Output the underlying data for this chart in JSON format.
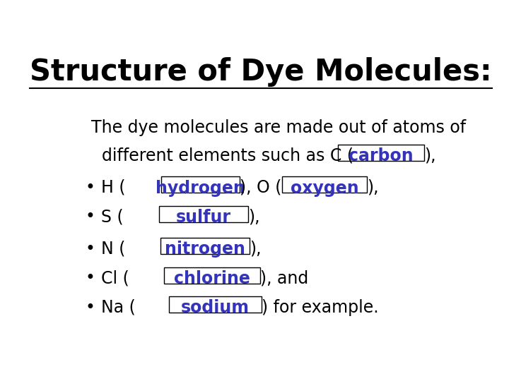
{
  "title": "Structure of Dye Molecules:",
  "title_color": "#000000",
  "title_fontsize": 30,
  "body_color": "#000000",
  "highlight_color": "#3333bb",
  "background_color": "#ffffff",
  "body_fontsize": 17,
  "line1": "The dye molecules are made out of atoms of",
  "line2_prefix": "  different elements such as C (",
  "line2_blank_word": "carbon",
  "line2_suffix": "),",
  "bullet1_prefix": "H (",
  "bullet1_blank1": "hydrogen",
  "bullet1_mid": "), O (",
  "bullet1_blank2": "oxygen",
  "bullet1_suffix": "),",
  "bullet2_prefix": "S (",
  "bullet2_blank": "sulfur",
  "bullet2_suffix": "),",
  "bullet3_prefix": "N (",
  "bullet3_blank": "nitrogen",
  "bullet3_suffix": "),",
  "bullet4_prefix": "Cl (",
  "bullet4_blank": "chlorine",
  "bullet4_suffix": "), and",
  "bullet5_prefix": "Na (",
  "bullet5_blank": "sodium",
  "bullet5_suffix": ") for example."
}
